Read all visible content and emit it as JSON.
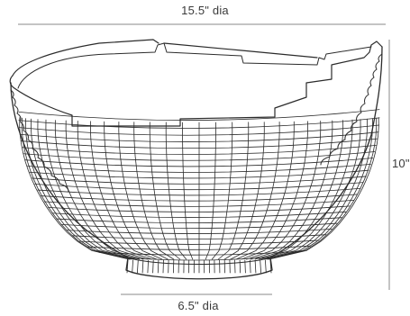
{
  "dimensions": {
    "top_diameter": "15.5\" dia",
    "base_diameter": "6.5\" dia",
    "height": "10\""
  },
  "colors": {
    "line": "#2b2b2b",
    "dimension_line": "#8a8a8a",
    "text": "#3a3a3a",
    "background": "#ffffff"
  }
}
